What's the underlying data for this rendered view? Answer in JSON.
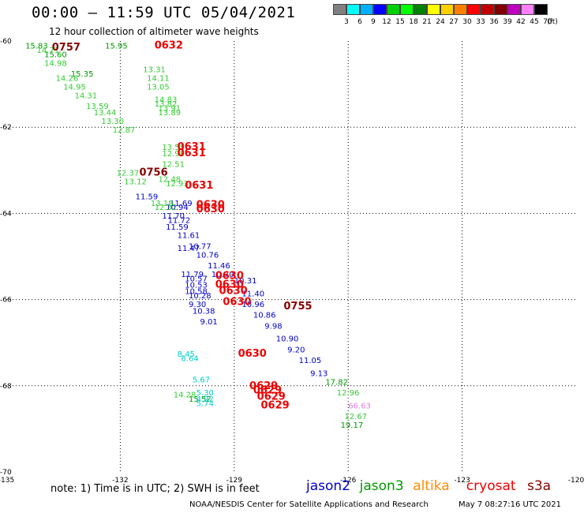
{
  "header": {
    "title": "00:00 – 11:59 UTC 05/04/2021",
    "subtitle": "12 hour collection of altimeter wave heights"
  },
  "colorbar": {
    "colors": [
      "#808080",
      "#00ffff",
      "#00b0ff",
      "#0000ff",
      "#00d000",
      "#00ff00",
      "#008000",
      "#ffff00",
      "#ffd000",
      "#ff8000",
      "#ff0000",
      "#c00000",
      "#800000",
      "#c000c0",
      "#ff80ff",
      "#000000"
    ],
    "labels": [
      "3",
      "6",
      "9",
      "12",
      "15",
      "18",
      "21",
      "24",
      "27",
      "30",
      "33",
      "36",
      "39",
      "42",
      "45",
      "70"
    ],
    "unit": "(ft)"
  },
  "chart_data": {
    "type": "scatter",
    "title": "00:00 – 11:59 UTC 05/04/2021",
    "subtitle": "12 hour collection of altimeter wave heights",
    "xlabel": "",
    "ylabel": "",
    "xlim": [
      -135,
      -120
    ],
    "ylim": [
      -70,
      -60
    ],
    "x_ticks": [
      "-135",
      "-132",
      "-129",
      "-126",
      "-123",
      "-120"
    ],
    "y_ticks": [
      "-60",
      "-62",
      "-64",
      "-66",
      "-68",
      "-70"
    ],
    "grid": true,
    "series": [
      {
        "name": "jason2",
        "color": "#0000cc",
        "points": [
          {
            "lon": -131.6,
            "lat": -63.6,
            "label": "11.59"
          },
          {
            "lon": -130.7,
            "lat": -63.75,
            "label": "11.69"
          },
          {
            "lon": -130.8,
            "lat": -63.85,
            "label": "10.94"
          },
          {
            "lon": -130.9,
            "lat": -64.05,
            "label": "11.70"
          },
          {
            "lon": -130.75,
            "lat": -64.15,
            "label": "11.72"
          },
          {
            "lon": -130.8,
            "lat": -64.3,
            "label": "11.59"
          },
          {
            "lon": -130.5,
            "lat": -64.5,
            "label": "11.61"
          },
          {
            "lon": -130.2,
            "lat": -64.75,
            "label": "10.77"
          },
          {
            "lon": -130.5,
            "lat": -64.8,
            "label": "11.47"
          },
          {
            "lon": -130.0,
            "lat": -64.95,
            "label": "10.76"
          },
          {
            "lon": -129.7,
            "lat": -65.2,
            "label": "11.46"
          },
          {
            "lon": -130.4,
            "lat": -65.4,
            "label": "11.79"
          },
          {
            "lon": -129.6,
            "lat": -65.4,
            "label": "10.70"
          },
          {
            "lon": -130.3,
            "lat": -65.5,
            "label": "10.57"
          },
          {
            "lon": -129.0,
            "lat": -65.55,
            "label": "10.31"
          },
          {
            "lon": -130.3,
            "lat": -65.65,
            "label": "10.53"
          },
          {
            "lon": -130.3,
            "lat": -65.8,
            "label": "10.58"
          },
          {
            "lon": -128.8,
            "lat": -65.85,
            "label": "11.40"
          },
          {
            "lon": -130.2,
            "lat": -65.9,
            "label": "10.28"
          },
          {
            "lon": -130.2,
            "lat": -66.1,
            "label": "9.30"
          },
          {
            "lon": -128.8,
            "lat": -66.1,
            "label": "10.96"
          },
          {
            "lon": -130.1,
            "lat": -66.25,
            "label": "10.38"
          },
          {
            "lon": -128.5,
            "lat": -66.35,
            "label": "10.86"
          },
          {
            "lon": -129.9,
            "lat": -66.5,
            "label": "9.01"
          },
          {
            "lon": -128.2,
            "lat": -66.6,
            "label": "9.98"
          },
          {
            "lon": -127.9,
            "lat": -66.9,
            "label": "10.90"
          },
          {
            "lon": -127.6,
            "lat": -67.15,
            "label": "9.20"
          },
          {
            "lon": -127.3,
            "lat": -67.4,
            "label": "11.05"
          },
          {
            "lon": -127.0,
            "lat": -67.7,
            "label": "9.13"
          }
        ]
      },
      {
        "name": "jason3",
        "color": "#009900",
        "points": [
          {
            "lon": -134.5,
            "lat": -60.1,
            "label": "15.83"
          },
          {
            "lon": -134.0,
            "lat": -60.3,
            "label": "15.60"
          },
          {
            "lon": -133.3,
            "lat": -60.75,
            "label": "15.35"
          },
          {
            "lon": -132.4,
            "lat": -60.1,
            "label": "15.95"
          },
          {
            "lon": -126.6,
            "lat": -67.9,
            "label": "17.82"
          },
          {
            "lon": -126.2,
            "lat": -68.9,
            "label": "19.17"
          },
          {
            "lon": -130.2,
            "lat": -68.3,
            "label": "15.52"
          }
        ]
      },
      {
        "name": "jason3-light",
        "color": "#33cc33",
        "points": [
          {
            "lon": -134.2,
            "lat": -60.2,
            "label": "14.71"
          },
          {
            "lon": -134.0,
            "lat": -60.5,
            "label": "14.98"
          },
          {
            "lon": -133.7,
            "lat": -60.85,
            "label": "14.26"
          },
          {
            "lon": -133.5,
            "lat": -61.05,
            "label": "14.95"
          },
          {
            "lon": -133.2,
            "lat": -61.25,
            "label": "14.31"
          },
          {
            "lon": -132.9,
            "lat": -61.5,
            "label": "13.59"
          },
          {
            "lon": -132.7,
            "lat": -61.65,
            "label": "13.44"
          },
          {
            "lon": -132.5,
            "lat": -61.85,
            "label": "13.30"
          },
          {
            "lon": -132.2,
            "lat": -62.05,
            "label": "12.87"
          },
          {
            "lon": -131.4,
            "lat": -60.65,
            "label": "13.31"
          },
          {
            "lon": -131.3,
            "lat": -60.85,
            "label": "14.11"
          },
          {
            "lon": -131.3,
            "lat": -61.05,
            "label": "13.05"
          },
          {
            "lon": -131.1,
            "lat": -61.35,
            "label": "14.83"
          },
          {
            "lon": -131.1,
            "lat": -61.45,
            "label": "13.82"
          },
          {
            "lon": -131.0,
            "lat": -61.55,
            "label": "13.91"
          },
          {
            "lon": -131.0,
            "lat": -61.65,
            "label": "13.89"
          },
          {
            "lon": -130.9,
            "lat": -62.45,
            "label": "13.55"
          },
          {
            "lon": -130.9,
            "lat": -62.6,
            "label": "12.98"
          },
          {
            "lon": -130.9,
            "lat": -62.85,
            "label": "12.51"
          },
          {
            "lon": -132.1,
            "lat": -63.05,
            "label": "12.37"
          },
          {
            "lon": -131.0,
            "lat": -63.2,
            "label": "12.48"
          },
          {
            "lon": -131.9,
            "lat": -63.25,
            "label": "13.12"
          },
          {
            "lon": -130.8,
            "lat": -63.3,
            "label": "12.93"
          },
          {
            "lon": -131.2,
            "lat": -63.75,
            "label": "13.18"
          },
          {
            "lon": -131.1,
            "lat": -63.85,
            "label": "12.32"
          },
          {
            "lon": -126.3,
            "lat": -68.15,
            "label": "12.96"
          },
          {
            "lon": -126.1,
            "lat": -68.7,
            "label": "12.67"
          },
          {
            "lon": -130.6,
            "lat": -68.2,
            "label": "14.28"
          }
        ]
      },
      {
        "name": "cyan",
        "color": "#00cccc",
        "points": [
          {
            "lon": -130.5,
            "lat": -67.25,
            "label": "8.45"
          },
          {
            "lon": -130.4,
            "lat": -67.35,
            "label": "8.64"
          },
          {
            "lon": -130.1,
            "lat": -67.85,
            "label": "5.67"
          },
          {
            "lon": -130.0,
            "lat": -68.15,
            "label": "5.30"
          },
          {
            "lon": -130.0,
            "lat": -68.3,
            "label": "4.92"
          },
          {
            "lon": -130.0,
            "lat": -68.4,
            "label": "5.74"
          }
        ]
      },
      {
        "name": "s3a-pink",
        "color": "#e080e0",
        "points": [
          {
            "lon": -126.0,
            "lat": -68.45,
            "label": "66.63"
          }
        ]
      },
      {
        "name": "cryosat-times",
        "color": "#ee0000",
        "points": [
          {
            "lon": -131.1,
            "lat": -60.1,
            "label": "0632"
          },
          {
            "lon": -130.5,
            "lat": -62.45,
            "label": "0631"
          },
          {
            "lon": -130.5,
            "lat": -62.6,
            "label": "0631"
          },
          {
            "lon": -130.3,
            "lat": -63.35,
            "label": "0631"
          },
          {
            "lon": -130.0,
            "lat": -63.8,
            "label": "0630"
          },
          {
            "lon": -130.0,
            "lat": -63.9,
            "label": "0630"
          },
          {
            "lon": -129.5,
            "lat": -65.45,
            "label": "0630"
          },
          {
            "lon": -129.5,
            "lat": -65.65,
            "label": "0630"
          },
          {
            "lon": -129.4,
            "lat": -65.8,
            "label": "0630"
          },
          {
            "lon": -129.3,
            "lat": -66.05,
            "label": "0630"
          },
          {
            "lon": -128.9,
            "lat": -67.25,
            "label": "0630"
          },
          {
            "lon": -128.6,
            "lat": -68.0,
            "label": "0629"
          },
          {
            "lon": -128.5,
            "lat": -68.1,
            "label": "0629"
          },
          {
            "lon": -128.4,
            "lat": -68.25,
            "label": "0629"
          },
          {
            "lon": -128.3,
            "lat": -68.45,
            "label": "0629"
          }
        ]
      },
      {
        "name": "jason-times",
        "color": "#880000",
        "points": [
          {
            "lon": -133.8,
            "lat": -60.15,
            "label": "0757"
          },
          {
            "lon": -131.5,
            "lat": -63.05,
            "label": "0756"
          },
          {
            "lon": -127.7,
            "lat": -66.15,
            "label": "0755"
          }
        ]
      }
    ]
  },
  "footer": {
    "note": "note: 1) Time is in UTC; 2) SWH is in feet",
    "legend": [
      {
        "name": "jason2",
        "color": "#0000cc"
      },
      {
        "name": "jason3",
        "color": "#009900"
      },
      {
        "name": "altika",
        "color": "#ff8c00"
      },
      {
        "name": "cryosat",
        "color": "#ee0000"
      },
      {
        "name": "s3a",
        "color": "#880000"
      }
    ],
    "credit": "NOAA/NESDIS Center for Satellite Applications and Research",
    "timestamp": "May  7 08:27:16 UTC 2021"
  }
}
